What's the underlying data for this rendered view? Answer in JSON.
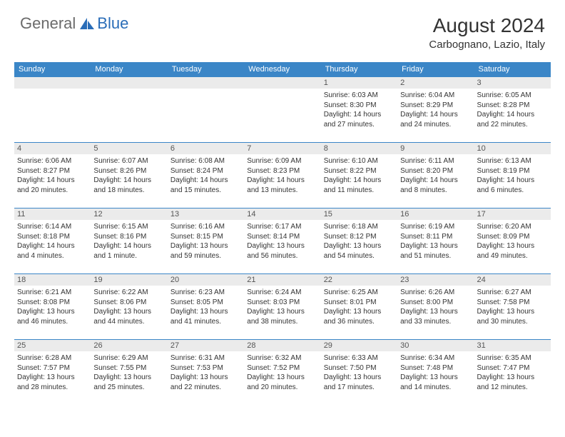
{
  "brand": {
    "general": "General",
    "blue": "Blue"
  },
  "title": "August 2024",
  "location": "Carbognano, Lazio, Italy",
  "colors": {
    "header_bg": "#3b86c7",
    "header_text": "#ffffff",
    "daynum_bg": "#ebebeb",
    "border": "#3b86c7",
    "logo_gray": "#6b6b6b",
    "logo_blue": "#2a6db8"
  },
  "day_headers": [
    "Sunday",
    "Monday",
    "Tuesday",
    "Wednesday",
    "Thursday",
    "Friday",
    "Saturday"
  ],
  "weeks": [
    [
      {
        "n": "",
        "sr": "",
        "ss": "",
        "dl": ""
      },
      {
        "n": "",
        "sr": "",
        "ss": "",
        "dl": ""
      },
      {
        "n": "",
        "sr": "",
        "ss": "",
        "dl": ""
      },
      {
        "n": "",
        "sr": "",
        "ss": "",
        "dl": ""
      },
      {
        "n": "1",
        "sr": "Sunrise: 6:03 AM",
        "ss": "Sunset: 8:30 PM",
        "dl": "Daylight: 14 hours and 27 minutes."
      },
      {
        "n": "2",
        "sr": "Sunrise: 6:04 AM",
        "ss": "Sunset: 8:29 PM",
        "dl": "Daylight: 14 hours and 24 minutes."
      },
      {
        "n": "3",
        "sr": "Sunrise: 6:05 AM",
        "ss": "Sunset: 8:28 PM",
        "dl": "Daylight: 14 hours and 22 minutes."
      }
    ],
    [
      {
        "n": "4",
        "sr": "Sunrise: 6:06 AM",
        "ss": "Sunset: 8:27 PM",
        "dl": "Daylight: 14 hours and 20 minutes."
      },
      {
        "n": "5",
        "sr": "Sunrise: 6:07 AM",
        "ss": "Sunset: 8:26 PM",
        "dl": "Daylight: 14 hours and 18 minutes."
      },
      {
        "n": "6",
        "sr": "Sunrise: 6:08 AM",
        "ss": "Sunset: 8:24 PM",
        "dl": "Daylight: 14 hours and 15 minutes."
      },
      {
        "n": "7",
        "sr": "Sunrise: 6:09 AM",
        "ss": "Sunset: 8:23 PM",
        "dl": "Daylight: 14 hours and 13 minutes."
      },
      {
        "n": "8",
        "sr": "Sunrise: 6:10 AM",
        "ss": "Sunset: 8:22 PM",
        "dl": "Daylight: 14 hours and 11 minutes."
      },
      {
        "n": "9",
        "sr": "Sunrise: 6:11 AM",
        "ss": "Sunset: 8:20 PM",
        "dl": "Daylight: 14 hours and 8 minutes."
      },
      {
        "n": "10",
        "sr": "Sunrise: 6:13 AM",
        "ss": "Sunset: 8:19 PM",
        "dl": "Daylight: 14 hours and 6 minutes."
      }
    ],
    [
      {
        "n": "11",
        "sr": "Sunrise: 6:14 AM",
        "ss": "Sunset: 8:18 PM",
        "dl": "Daylight: 14 hours and 4 minutes."
      },
      {
        "n": "12",
        "sr": "Sunrise: 6:15 AM",
        "ss": "Sunset: 8:16 PM",
        "dl": "Daylight: 14 hours and 1 minute."
      },
      {
        "n": "13",
        "sr": "Sunrise: 6:16 AM",
        "ss": "Sunset: 8:15 PM",
        "dl": "Daylight: 13 hours and 59 minutes."
      },
      {
        "n": "14",
        "sr": "Sunrise: 6:17 AM",
        "ss": "Sunset: 8:14 PM",
        "dl": "Daylight: 13 hours and 56 minutes."
      },
      {
        "n": "15",
        "sr": "Sunrise: 6:18 AM",
        "ss": "Sunset: 8:12 PM",
        "dl": "Daylight: 13 hours and 54 minutes."
      },
      {
        "n": "16",
        "sr": "Sunrise: 6:19 AM",
        "ss": "Sunset: 8:11 PM",
        "dl": "Daylight: 13 hours and 51 minutes."
      },
      {
        "n": "17",
        "sr": "Sunrise: 6:20 AM",
        "ss": "Sunset: 8:09 PM",
        "dl": "Daylight: 13 hours and 49 minutes."
      }
    ],
    [
      {
        "n": "18",
        "sr": "Sunrise: 6:21 AM",
        "ss": "Sunset: 8:08 PM",
        "dl": "Daylight: 13 hours and 46 minutes."
      },
      {
        "n": "19",
        "sr": "Sunrise: 6:22 AM",
        "ss": "Sunset: 8:06 PM",
        "dl": "Daylight: 13 hours and 44 minutes."
      },
      {
        "n": "20",
        "sr": "Sunrise: 6:23 AM",
        "ss": "Sunset: 8:05 PM",
        "dl": "Daylight: 13 hours and 41 minutes."
      },
      {
        "n": "21",
        "sr": "Sunrise: 6:24 AM",
        "ss": "Sunset: 8:03 PM",
        "dl": "Daylight: 13 hours and 38 minutes."
      },
      {
        "n": "22",
        "sr": "Sunrise: 6:25 AM",
        "ss": "Sunset: 8:01 PM",
        "dl": "Daylight: 13 hours and 36 minutes."
      },
      {
        "n": "23",
        "sr": "Sunrise: 6:26 AM",
        "ss": "Sunset: 8:00 PM",
        "dl": "Daylight: 13 hours and 33 minutes."
      },
      {
        "n": "24",
        "sr": "Sunrise: 6:27 AM",
        "ss": "Sunset: 7:58 PM",
        "dl": "Daylight: 13 hours and 30 minutes."
      }
    ],
    [
      {
        "n": "25",
        "sr": "Sunrise: 6:28 AM",
        "ss": "Sunset: 7:57 PM",
        "dl": "Daylight: 13 hours and 28 minutes."
      },
      {
        "n": "26",
        "sr": "Sunrise: 6:29 AM",
        "ss": "Sunset: 7:55 PM",
        "dl": "Daylight: 13 hours and 25 minutes."
      },
      {
        "n": "27",
        "sr": "Sunrise: 6:31 AM",
        "ss": "Sunset: 7:53 PM",
        "dl": "Daylight: 13 hours and 22 minutes."
      },
      {
        "n": "28",
        "sr": "Sunrise: 6:32 AM",
        "ss": "Sunset: 7:52 PM",
        "dl": "Daylight: 13 hours and 20 minutes."
      },
      {
        "n": "29",
        "sr": "Sunrise: 6:33 AM",
        "ss": "Sunset: 7:50 PM",
        "dl": "Daylight: 13 hours and 17 minutes."
      },
      {
        "n": "30",
        "sr": "Sunrise: 6:34 AM",
        "ss": "Sunset: 7:48 PM",
        "dl": "Daylight: 13 hours and 14 minutes."
      },
      {
        "n": "31",
        "sr": "Sunrise: 6:35 AM",
        "ss": "Sunset: 7:47 PM",
        "dl": "Daylight: 13 hours and 12 minutes."
      }
    ]
  ]
}
